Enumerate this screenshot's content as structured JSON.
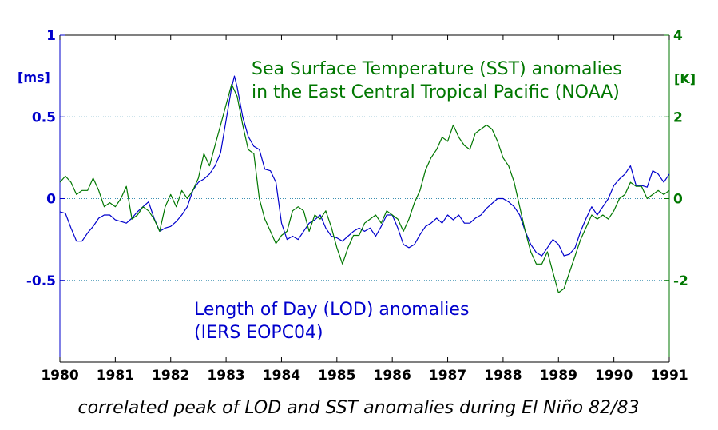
{
  "chart_data": {
    "type": "line",
    "title": "",
    "caption": "correlated peak of LOD and SST anomalies during El Niño 82/83",
    "xlim": [
      1980,
      1991
    ],
    "x_ticks": [
      "1980",
      "1981",
      "1982",
      "1983",
      "1984",
      "1985",
      "1986",
      "1987",
      "1988",
      "1989",
      "1990",
      "1991"
    ],
    "y_left": {
      "unit_label": "[ms]",
      "ylim": [
        -1,
        1
      ],
      "ticks": [
        1,
        0.5,
        0,
        -0.5
      ],
      "tick_labels": [
        "1",
        "0.5",
        "0",
        "-0.5"
      ],
      "color": "#0000cc"
    },
    "y_right": {
      "unit_label": "[K]",
      "ylim": [
        -4,
        4
      ],
      "ticks": [
        4,
        2,
        0,
        -2
      ],
      "tick_labels": [
        "4",
        "2",
        "0",
        "-2"
      ],
      "color": "#007700"
    },
    "grid": "dotted horizontal at 0.5, 0, -0.5",
    "series": [
      {
        "name": "Length of Day (LOD) anomalies",
        "axis": "left",
        "color": "#0000cc",
        "points": [
          [
            1980.0,
            -0.08
          ],
          [
            1980.1,
            -0.09
          ],
          [
            1980.2,
            -0.18
          ],
          [
            1980.3,
            -0.26
          ],
          [
            1980.4,
            -0.26
          ],
          [
            1980.5,
            -0.21
          ],
          [
            1980.6,
            -0.17
          ],
          [
            1980.7,
            -0.12
          ],
          [
            1980.8,
            -0.1
          ],
          [
            1980.9,
            -0.1
          ],
          [
            1981.0,
            -0.13
          ],
          [
            1981.1,
            -0.14
          ],
          [
            1981.2,
            -0.15
          ],
          [
            1981.3,
            -0.12
          ],
          [
            1981.4,
            -0.08
          ],
          [
            1981.5,
            -0.05
          ],
          [
            1981.6,
            -0.02
          ],
          [
            1981.7,
            -0.12
          ],
          [
            1981.8,
            -0.2
          ],
          [
            1981.9,
            -0.18
          ],
          [
            1982.0,
            -0.17
          ],
          [
            1982.1,
            -0.14
          ],
          [
            1982.2,
            -0.1
          ],
          [
            1982.3,
            -0.05
          ],
          [
            1982.4,
            0.05
          ],
          [
            1982.5,
            0.1
          ],
          [
            1982.6,
            0.12
          ],
          [
            1982.7,
            0.15
          ],
          [
            1982.8,
            0.2
          ],
          [
            1982.9,
            0.28
          ],
          [
            1983.0,
            0.48
          ],
          [
            1983.1,
            0.68
          ],
          [
            1983.15,
            0.75
          ],
          [
            1983.2,
            0.68
          ],
          [
            1983.3,
            0.5
          ],
          [
            1983.4,
            0.38
          ],
          [
            1983.5,
            0.32
          ],
          [
            1983.6,
            0.3
          ],
          [
            1983.7,
            0.18
          ],
          [
            1983.8,
            0.17
          ],
          [
            1983.9,
            0.1
          ],
          [
            1984.0,
            -0.15
          ],
          [
            1984.1,
            -0.25
          ],
          [
            1984.2,
            -0.23
          ],
          [
            1984.3,
            -0.25
          ],
          [
            1984.4,
            -0.2
          ],
          [
            1984.5,
            -0.15
          ],
          [
            1984.6,
            -0.13
          ],
          [
            1984.7,
            -0.1
          ],
          [
            1984.8,
            -0.18
          ],
          [
            1984.9,
            -0.23
          ],
          [
            1985.0,
            -0.24
          ],
          [
            1985.1,
            -0.26
          ],
          [
            1985.2,
            -0.23
          ],
          [
            1985.3,
            -0.2
          ],
          [
            1985.4,
            -0.18
          ],
          [
            1985.5,
            -0.2
          ],
          [
            1985.6,
            -0.18
          ],
          [
            1985.7,
            -0.23
          ],
          [
            1985.8,
            -0.17
          ],
          [
            1985.9,
            -0.1
          ],
          [
            1986.0,
            -0.1
          ],
          [
            1986.1,
            -0.18
          ],
          [
            1986.2,
            -0.28
          ],
          [
            1986.3,
            -0.3
          ],
          [
            1986.4,
            -0.28
          ],
          [
            1986.5,
            -0.22
          ],
          [
            1986.6,
            -0.17
          ],
          [
            1986.7,
            -0.15
          ],
          [
            1986.8,
            -0.12
          ],
          [
            1986.9,
            -0.15
          ],
          [
            1987.0,
            -0.1
          ],
          [
            1987.1,
            -0.13
          ],
          [
            1987.2,
            -0.1
          ],
          [
            1987.3,
            -0.15
          ],
          [
            1987.4,
            -0.15
          ],
          [
            1987.5,
            -0.12
          ],
          [
            1987.6,
            -0.1
          ],
          [
            1987.7,
            -0.06
          ],
          [
            1987.8,
            -0.03
          ],
          [
            1987.9,
            0.0
          ],
          [
            1988.0,
            0.0
          ],
          [
            1988.1,
            -0.02
          ],
          [
            1988.2,
            -0.05
          ],
          [
            1988.3,
            -0.1
          ],
          [
            1988.4,
            -0.2
          ],
          [
            1988.5,
            -0.28
          ],
          [
            1988.6,
            -0.33
          ],
          [
            1988.7,
            -0.35
          ],
          [
            1988.8,
            -0.3
          ],
          [
            1988.9,
            -0.25
          ],
          [
            1989.0,
            -0.28
          ],
          [
            1989.1,
            -0.35
          ],
          [
            1989.2,
            -0.34
          ],
          [
            1989.3,
            -0.3
          ],
          [
            1989.4,
            -0.2
          ],
          [
            1989.5,
            -0.12
          ],
          [
            1989.6,
            -0.05
          ],
          [
            1989.7,
            -0.1
          ],
          [
            1989.8,
            -0.05
          ],
          [
            1989.9,
            0.0
          ],
          [
            1990.0,
            0.08
          ],
          [
            1990.1,
            0.12
          ],
          [
            1990.2,
            0.15
          ],
          [
            1990.3,
            0.2
          ],
          [
            1990.4,
            0.08
          ],
          [
            1990.5,
            0.08
          ],
          [
            1990.6,
            0.07
          ],
          [
            1990.7,
            0.17
          ],
          [
            1990.8,
            0.15
          ],
          [
            1990.9,
            0.1
          ],
          [
            1991.0,
            0.15
          ]
        ]
      },
      {
        "name": "Sea Surface Temperature (SST) anomalies in the East Central Tropical Pacific (NOAA)",
        "axis": "right",
        "color": "#007700",
        "points": [
          [
            1980.0,
            0.4
          ],
          [
            1980.1,
            0.55
          ],
          [
            1980.2,
            0.4
          ],
          [
            1980.3,
            0.1
          ],
          [
            1980.4,
            0.2
          ],
          [
            1980.5,
            0.2
          ],
          [
            1980.6,
            0.5
          ],
          [
            1980.7,
            0.2
          ],
          [
            1980.8,
            -0.2
          ],
          [
            1980.9,
            -0.1
          ],
          [
            1981.0,
            -0.2
          ],
          [
            1981.1,
            0.0
          ],
          [
            1981.2,
            0.3
          ],
          [
            1981.3,
            -0.5
          ],
          [
            1981.4,
            -0.4
          ],
          [
            1981.5,
            -0.2
          ],
          [
            1981.6,
            -0.3
          ],
          [
            1981.7,
            -0.5
          ],
          [
            1981.8,
            -0.8
          ],
          [
            1981.9,
            -0.2
          ],
          [
            1982.0,
            0.1
          ],
          [
            1982.1,
            -0.2
          ],
          [
            1982.2,
            0.2
          ],
          [
            1982.3,
            0.0
          ],
          [
            1982.4,
            0.2
          ],
          [
            1982.5,
            0.5
          ],
          [
            1982.6,
            1.1
          ],
          [
            1982.7,
            0.8
          ],
          [
            1982.8,
            1.3
          ],
          [
            1982.9,
            1.8
          ],
          [
            1983.0,
            2.3
          ],
          [
            1983.1,
            2.8
          ],
          [
            1983.2,
            2.5
          ],
          [
            1983.3,
            1.8
          ],
          [
            1983.4,
            1.2
          ],
          [
            1983.5,
            1.1
          ],
          [
            1983.6,
            0.0
          ],
          [
            1983.7,
            -0.5
          ],
          [
            1983.8,
            -0.8
          ],
          [
            1983.9,
            -1.1
          ],
          [
            1984.0,
            -0.9
          ],
          [
            1984.1,
            -0.8
          ],
          [
            1984.2,
            -0.3
          ],
          [
            1984.3,
            -0.2
          ],
          [
            1984.4,
            -0.3
          ],
          [
            1984.5,
            -0.8
          ],
          [
            1984.6,
            -0.4
          ],
          [
            1984.7,
            -0.5
          ],
          [
            1984.8,
            -0.3
          ],
          [
            1984.9,
            -0.7
          ],
          [
            1985.0,
            -1.2
          ],
          [
            1985.1,
            -1.6
          ],
          [
            1985.2,
            -1.2
          ],
          [
            1985.3,
            -0.9
          ],
          [
            1985.4,
            -0.9
          ],
          [
            1985.5,
            -0.6
          ],
          [
            1985.6,
            -0.5
          ],
          [
            1985.7,
            -0.4
          ],
          [
            1985.8,
            -0.6
          ],
          [
            1985.9,
            -0.3
          ],
          [
            1986.0,
            -0.4
          ],
          [
            1986.1,
            -0.5
          ],
          [
            1986.2,
            -0.8
          ],
          [
            1986.3,
            -0.5
          ],
          [
            1986.4,
            -0.1
          ],
          [
            1986.5,
            0.2
          ],
          [
            1986.6,
            0.7
          ],
          [
            1986.7,
            1.0
          ],
          [
            1986.8,
            1.2
          ],
          [
            1986.9,
            1.5
          ],
          [
            1987.0,
            1.4
          ],
          [
            1987.1,
            1.8
          ],
          [
            1987.2,
            1.5
          ],
          [
            1987.3,
            1.3
          ],
          [
            1987.4,
            1.2
          ],
          [
            1987.5,
            1.6
          ],
          [
            1987.6,
            1.7
          ],
          [
            1987.7,
            1.8
          ],
          [
            1987.8,
            1.7
          ],
          [
            1987.9,
            1.4
          ],
          [
            1988.0,
            1.0
          ],
          [
            1988.1,
            0.8
          ],
          [
            1988.2,
            0.4
          ],
          [
            1988.3,
            -0.2
          ],
          [
            1988.4,
            -0.8
          ],
          [
            1988.5,
            -1.3
          ],
          [
            1988.6,
            -1.6
          ],
          [
            1988.7,
            -1.6
          ],
          [
            1988.8,
            -1.3
          ],
          [
            1988.9,
            -1.8
          ],
          [
            1989.0,
            -2.3
          ],
          [
            1989.1,
            -2.2
          ],
          [
            1989.2,
            -1.8
          ],
          [
            1989.3,
            -1.4
          ],
          [
            1989.4,
            -1.0
          ],
          [
            1989.5,
            -0.7
          ],
          [
            1989.6,
            -0.4
          ],
          [
            1989.7,
            -0.5
          ],
          [
            1989.8,
            -0.4
          ],
          [
            1989.9,
            -0.5
          ],
          [
            1990.0,
            -0.3
          ],
          [
            1990.1,
            0.0
          ],
          [
            1990.2,
            0.1
          ],
          [
            1990.3,
            0.4
          ],
          [
            1990.4,
            0.3
          ],
          [
            1990.5,
            0.3
          ],
          [
            1990.6,
            0.0
          ],
          [
            1990.7,
            0.1
          ],
          [
            1990.8,
            0.2
          ],
          [
            1990.9,
            0.1
          ],
          [
            1991.0,
            0.2
          ]
        ]
      }
    ],
    "annotations": {
      "sst_line1": "Sea Surface Temperature (SST) anomalies",
      "sst_line2": "in the East Central Tropical Pacific (NOAA)",
      "lod_line1": "Length of Day (LOD) anomalies",
      "lod_line2": "(IERS EOPC04)"
    }
  }
}
